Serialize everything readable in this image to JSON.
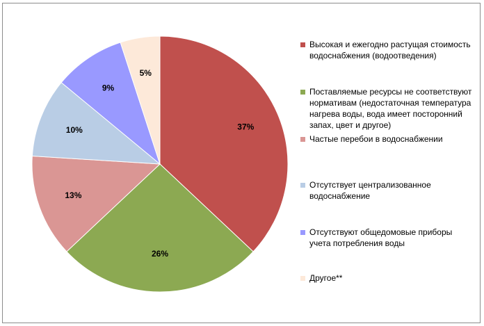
{
  "chart_data": {
    "type": "pie",
    "unit": "%",
    "slices": [
      {
        "label": "Высокая и ежегодно растущая стоимость водоснабжения (водоотведения)",
        "value": 37,
        "color": "#C0504D"
      },
      {
        "label": "Поставляемые ресурсы не соответствуют нормативам (недостаточная температура нагрева воды, вода имеет посторонний запах, цвет и другое)",
        "value": 26,
        "color": "#8CA952"
      },
      {
        "label": "Частые перебои в водоснабжении",
        "value": 13,
        "color": "#DA9694"
      },
      {
        "label": "Отсутствует централизованное водоснабжение",
        "value": 10,
        "color": "#B9CDE5"
      },
      {
        "label": "Отсутствуют общедомовые приборы учета потребления  воды",
        "value": 9,
        "color": "#9999FF"
      },
      {
        "label": "Другое**",
        "value": 5,
        "color": "#FDE9D9"
      }
    ],
    "data_labels": [
      "37%",
      "26%",
      "13%",
      "10%",
      "9%",
      "5%"
    ],
    "legend_position": "right"
  }
}
